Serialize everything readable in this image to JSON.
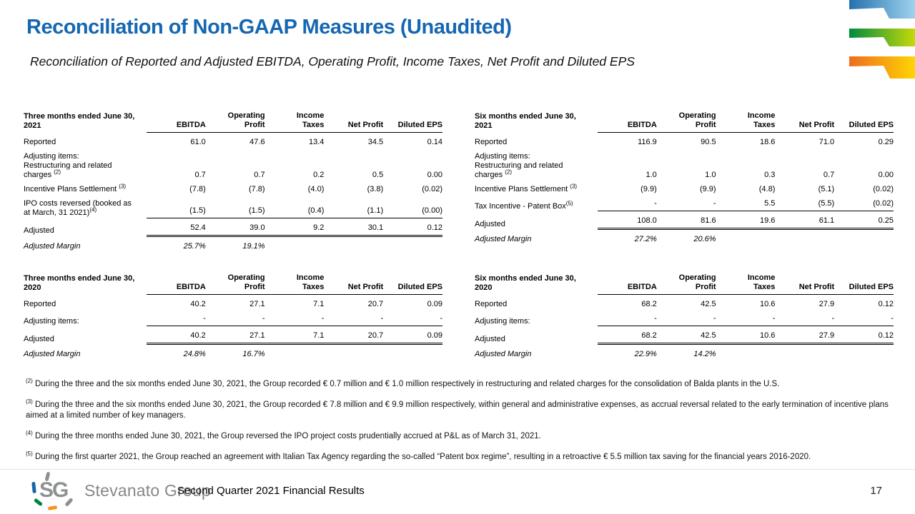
{
  "slide": {
    "title": "Reconciliation of Non-GAAP Measures (Unaudited)",
    "subtitle": "Reconciliation of Reported and Adjusted EBITDA, Operating Profit, Income Taxes, Net Profit and Diluted EPS",
    "footer_caption": "Second Quarter 2021 Financial Results",
    "page_number": "17",
    "logo_monogram": "SG",
    "logo_wordmark": "Stevanato Group"
  },
  "colors": {
    "title_blue": "#1667B1",
    "ribbon_blue_dark": "#2571AF",
    "ribbon_blue_light": "#9ED2EE",
    "ribbon_green_dark": "#008B3E",
    "ribbon_green_light": "#C6D90A",
    "ribbon_orange_dark": "#ED6D1E",
    "ribbon_orange_light": "#FFD405"
  },
  "columns": [
    "EBITDA",
    "Operating\nProfit",
    "Income\nTaxes",
    "Net Profit",
    "Diluted EPS"
  ],
  "tables": [
    {
      "title": "Three months ended June 30,\n2021",
      "rows": [
        {
          "label": [
            "Reported"
          ],
          "values": [
            "61.0",
            "47.6",
            "13.4",
            "34.5",
            "0.14"
          ]
        },
        {
          "label": [
            "Adjusting items:",
            "Restructuring and related",
            "charges |(2)"
          ],
          "values": [
            "0.7",
            "0.7",
            "0.2",
            "0.5",
            "0.00"
          ]
        },
        {
          "label": [
            "Incentive Plans Settlement |(3)"
          ],
          "values": [
            "(7.8)",
            "(7.8)",
            "(4.0)",
            "(3.8)",
            "(0.02)"
          ]
        },
        {
          "label": [
            "IPO costs reversed (booked as",
            "at March, 31 2021)|(4)"
          ],
          "values": [
            "(1.5)",
            "(1.5)",
            "(0.4)",
            "(1.1)",
            "(0.00)"
          ],
          "rule_below": true
        },
        {
          "label": [
            "Adjusted"
          ],
          "values": [
            "52.4",
            "39.0",
            "9.2",
            "30.1",
            "0.12"
          ],
          "double_below": true
        },
        {
          "label": [
            "Adjusted Margin"
          ],
          "values": [
            "25.7%",
            "19.1%",
            "",
            "",
            ""
          ],
          "italic": true
        }
      ]
    },
    {
      "title": "Six months ended June 30,\n2021",
      "rows": [
        {
          "label": [
            "Reported"
          ],
          "values": [
            "116.9",
            "90.5",
            "18.6",
            "71.0",
            "0.29"
          ]
        },
        {
          "label": [
            "Adjusting items:",
            "Restructuring and related",
            "charges |(2)"
          ],
          "values": [
            "1.0",
            "1.0",
            "0.3",
            "0.7",
            "0.00"
          ]
        },
        {
          "label": [
            "Incentive Plans Settlement |(3)"
          ],
          "values": [
            "(9.9)",
            "(9.9)",
            "(4.8)",
            "(5.1)",
            "(0.02)"
          ]
        },
        {
          "label": [
            "Tax Incentive - Patent Box|(5)"
          ],
          "values": [
            "-",
            "-",
            "5.5",
            "(5.5)",
            "(0.02)"
          ],
          "rule_below": true
        },
        {
          "label": [
            "Adjusted"
          ],
          "values": [
            "108.0",
            "81.6",
            "19.6",
            "61.1",
            "0.25"
          ],
          "double_below": true
        },
        {
          "label": [
            "Adjusted Margin"
          ],
          "values": [
            "27.2%",
            "20.6%",
            "",
            "",
            ""
          ],
          "italic": true
        }
      ]
    },
    {
      "title": "Three months ended June 30,\n2020",
      "rows": [
        {
          "label": [
            "Reported"
          ],
          "values": [
            "40.2",
            "27.1",
            "7.1",
            "20.7",
            "0.09"
          ]
        },
        {
          "label": [
            "Adjusting items:"
          ],
          "values": [
            "-",
            "-",
            "-",
            "-",
            "-"
          ],
          "rule_below": true
        },
        {
          "label": [
            "Adjusted"
          ],
          "values": [
            "40.2",
            "27.1",
            "7.1",
            "20.7",
            "0.09"
          ],
          "double_below": true
        },
        {
          "label": [
            "Adjusted Margin"
          ],
          "values": [
            "24.8%",
            "16.7%",
            "",
            "",
            ""
          ],
          "italic": true
        }
      ]
    },
    {
      "title": "Six months ended June 30,\n2020",
      "rows": [
        {
          "label": [
            "Reported"
          ],
          "values": [
            "68.2",
            "42.5",
            "10.6",
            "27.9",
            "0.12"
          ]
        },
        {
          "label": [
            "Adjusting items:"
          ],
          "values": [
            "-",
            "-",
            "-",
            "-",
            "-"
          ],
          "rule_below": true
        },
        {
          "label": [
            "Adjusted"
          ],
          "values": [
            "68.2",
            "42.5",
            "10.6",
            "27.9",
            "0.12"
          ],
          "double_below": true
        },
        {
          "label": [
            "Adjusted Margin"
          ],
          "values": [
            "22.9%",
            "14.2%",
            "",
            "",
            ""
          ],
          "italic": true
        }
      ]
    }
  ],
  "footnotes": [
    {
      "sup": "(2)",
      "text": "During the three and the six months ended June 30, 2021, the Group recorded € 0.7 million and € 1.0 million respectively in restructuring and related charges for the consolidation of Balda plants in the U.S."
    },
    {
      "sup": "(3)",
      "text": "During the three and the six months ended June 30, 2021, the Group recorded € 7.8 million and € 9.9 million respectively, within general and administrative expenses, as accrual reversal related to the early termination of incentive plans aimed at a limited number of key managers."
    },
    {
      "sup": "(4)",
      "text": "During the three months ended June 30, 2021, the Group reversed the IPO project costs prudentially accrued at P&L as of March 31, 2021."
    },
    {
      "sup": "(5)",
      "text": "During the first quarter 2021, the Group reached an agreement with Italian Tax Agency regarding the so-called “Patent box regime”, resulting in a retroactive € 5.5 million tax saving for the financial years 2016-2020."
    }
  ]
}
